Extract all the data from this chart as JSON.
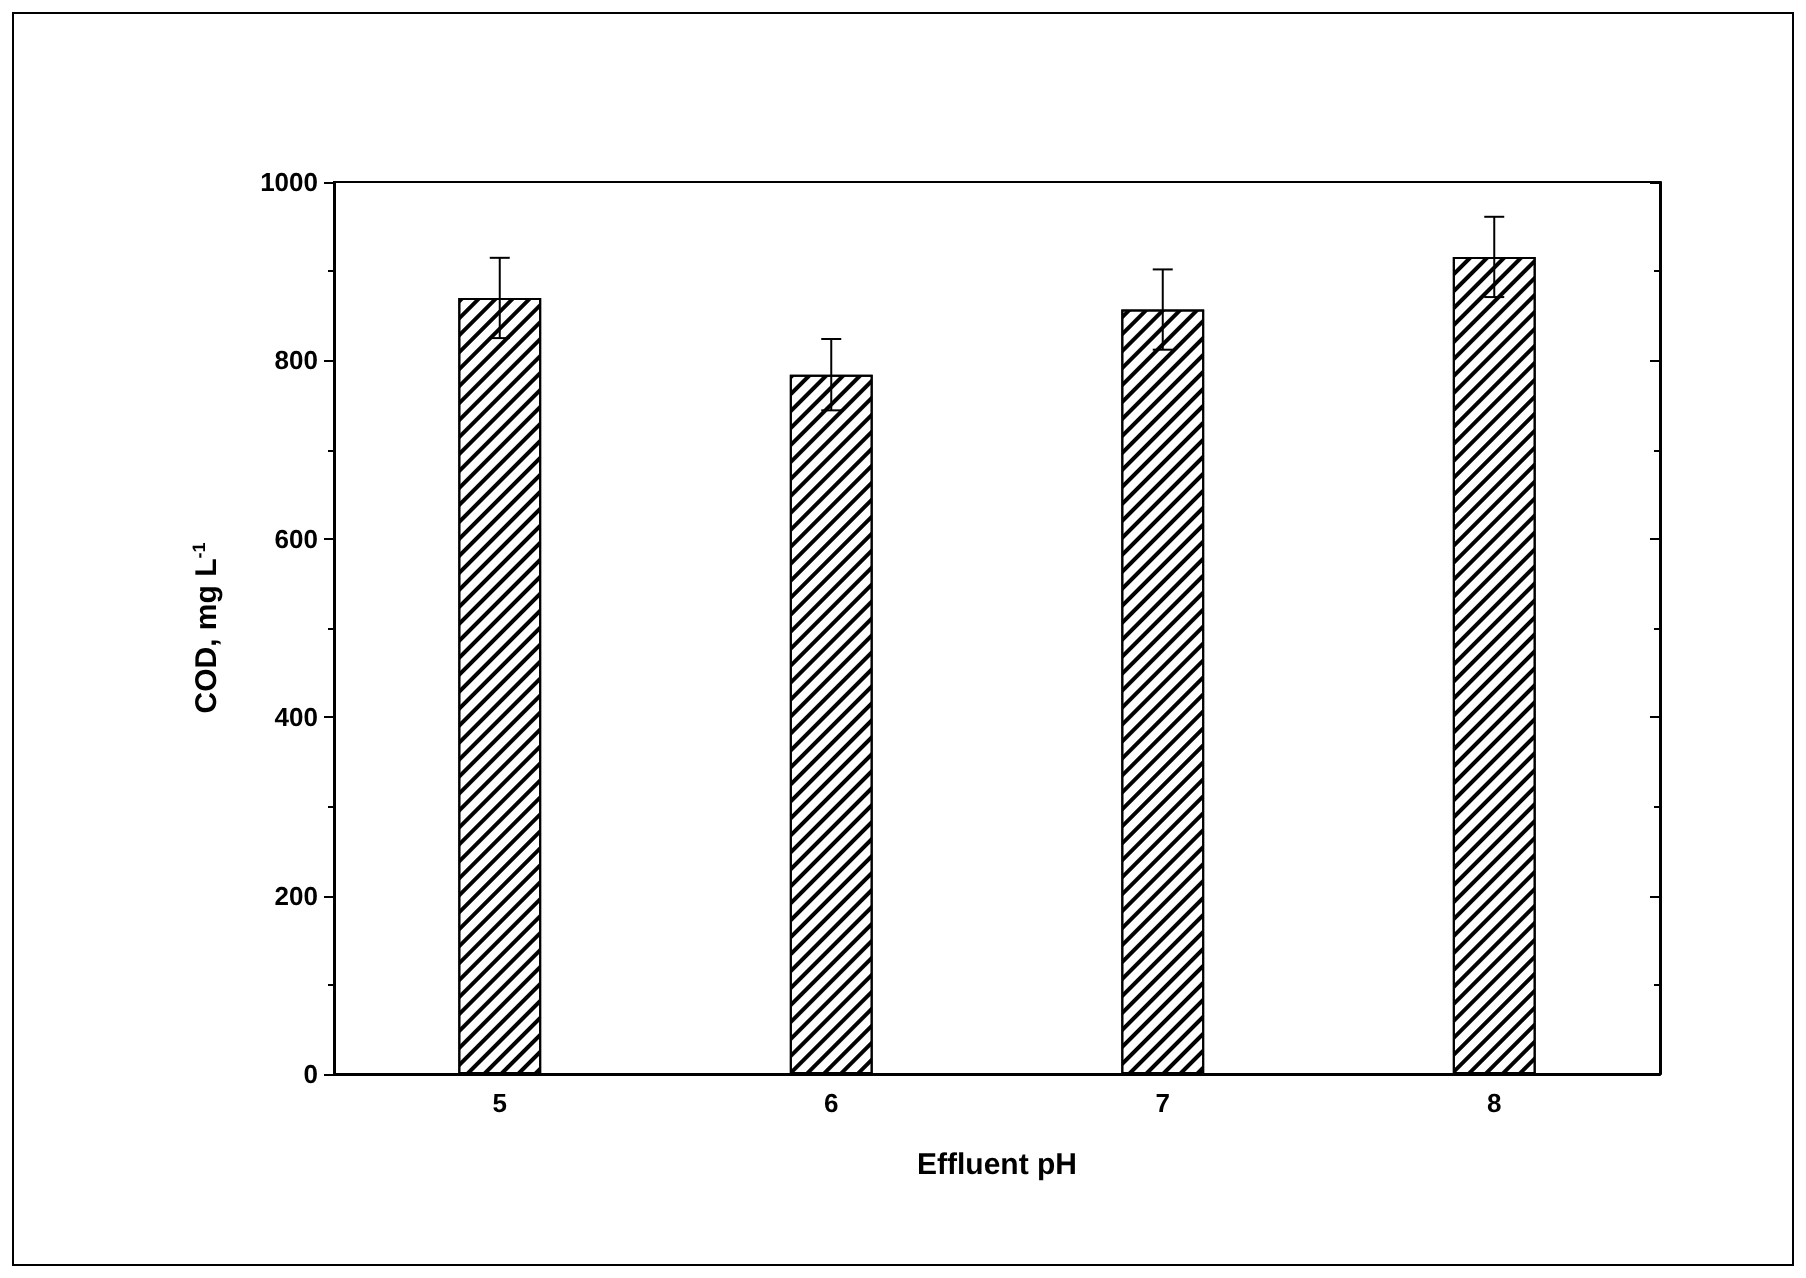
{
  "chart_data": {
    "type": "bar",
    "xlabel": "Effluent pH",
    "ylabel": "COD, mg L$^{-1}$",
    "categories": [
      "5",
      "6",
      "7",
      "8"
    ],
    "series": [
      {
        "color": "#000000",
        "values": [
          870,
          784,
          857,
          916
        ],
        "errors": [
          45,
          40,
          45,
          45
        ]
      }
    ],
    "ylim": [
      0,
      1000
    ],
    "yticks": [
      0,
      200,
      400,
      600,
      800,
      1000
    ],
    "grid": false
  }
}
